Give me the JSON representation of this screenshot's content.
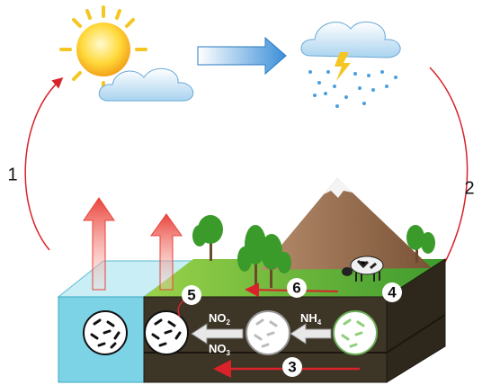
{
  "steps": [
    "1",
    "2",
    "3",
    "4",
    "5",
    "6"
  ],
  "compounds": [
    {
      "text": "NO",
      "subscript": "2"
    },
    {
      "text": "NO",
      "subscript": "3"
    },
    {
      "text": "NH",
      "subscript": "4"
    }
  ]
}
